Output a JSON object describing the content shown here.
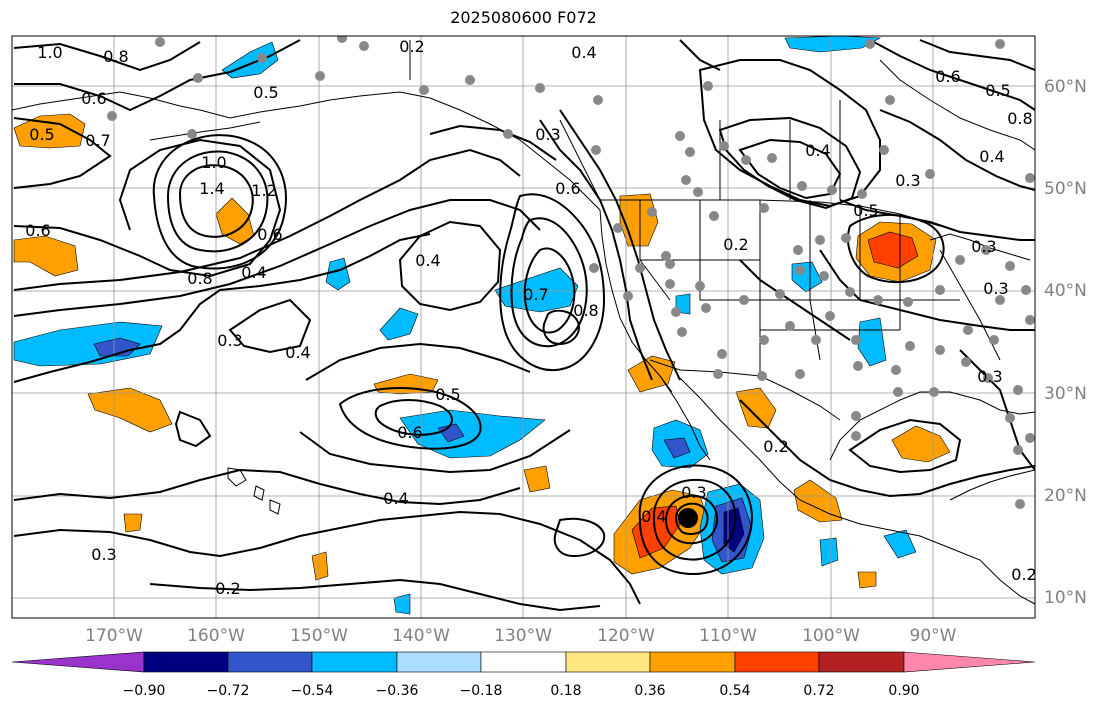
{
  "title": "2025080600 F072",
  "lon_labels": [
    "170°W",
    "160°W",
    "150°W",
    "140°W",
    "130°W",
    "120°W",
    "110°W",
    "100°W",
    "90°W"
  ],
  "lat_labels": [
    "60°N",
    "50°N",
    "40°N",
    "30°N",
    "20°N",
    "10°N"
  ],
  "colorbar": {
    "labels": [
      "−0.90",
      "−0.72",
      "−0.54",
      "−0.36",
      "−0.18",
      "0.18",
      "0.36",
      "0.54",
      "0.72",
      "0.90"
    ],
    "colors": [
      "#9933cc",
      "#000080",
      "#3355cc",
      "#00bbff",
      "#aaddff",
      "#ffffff",
      "#ffe680",
      "#ffa000",
      "#ff4000",
      "#b22222",
      "#ff88aa"
    ]
  },
  "contour_labels": [
    "1.0",
    "0.8",
    "0.6",
    "0.5",
    "0.7",
    "1.0",
    "1.4",
    "1.2",
    "0.6",
    "0.8",
    "0.4",
    "0.6",
    "0.3",
    "0.4",
    "0.4",
    "0.5",
    "0.6",
    "0.4",
    "0.3",
    "0.2",
    "0.2",
    "0.4",
    "0.3",
    "0.6",
    "0.7",
    "0.8",
    "0.5",
    "0.4",
    "0.2",
    "0.3",
    "0.4",
    "0.5",
    "0.6",
    "0.8",
    "0.4",
    "0.3",
    "0.5",
    "0.3",
    "0.2",
    "0.2",
    "0.3",
    "0.3"
  ],
  "fill_colors": {
    "orange": "#ffa000",
    "blue": "#00bbff",
    "darkblue": "#3355cc",
    "navy": "#000080",
    "red": "#ff4000"
  }
}
